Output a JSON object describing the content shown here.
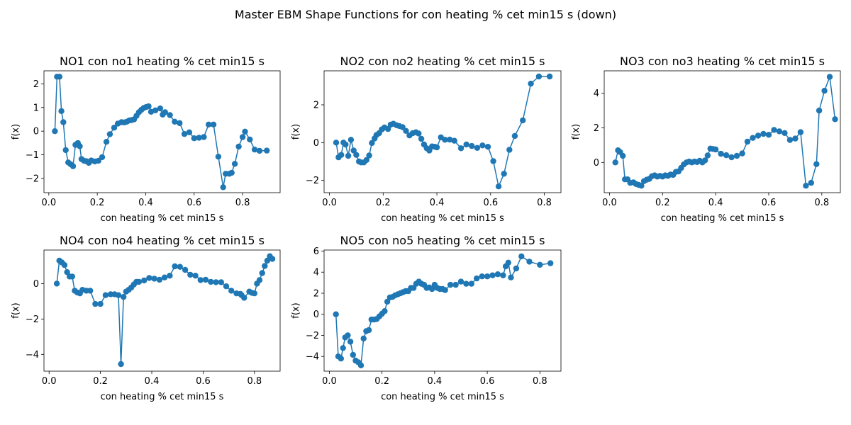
{
  "figure": {
    "suptitle": "Master EBM Shape Functions for con  heating % cet min15 s (down)"
  },
  "chart_data": [
    {
      "type": "line",
      "title": "NO1 con no1 heating % cet min15 s",
      "xlabel": "con  heating % cet min15 s",
      "ylabel": "f(x)",
      "xlim": [
        -0.02,
        0.955
      ],
      "ylim": [
        -2.6,
        2.55
      ],
      "xticks": [
        0.0,
        0.2,
        0.4,
        0.6,
        0.8
      ],
      "xtick_labels": [
        "0.0",
        "0.2",
        "0.4",
        "0.6",
        "0.8"
      ],
      "yticks": [
        -2,
        -1,
        0,
        1,
        2
      ],
      "ytick_labels": [
        "−2",
        "−1",
        "0",
        "1",
        "2"
      ],
      "color": "#1f77b4",
      "x": [
        0.025,
        0.034,
        0.044,
        0.052,
        0.06,
        0.07,
        0.08,
        0.09,
        0.1,
        0.11,
        0.12,
        0.128,
        0.135,
        0.145,
        0.155,
        0.165,
        0.175,
        0.19,
        0.205,
        0.22,
        0.238,
        0.252,
        0.27,
        0.285,
        0.3,
        0.312,
        0.322,
        0.332,
        0.342,
        0.352,
        0.362,
        0.372,
        0.382,
        0.392,
        0.402,
        0.412,
        0.422,
        0.44,
        0.46,
        0.47,
        0.48,
        0.5,
        0.52,
        0.54,
        0.56,
        0.58,
        0.6,
        0.62,
        0.64,
        0.66,
        0.68,
        0.7,
        0.72,
        0.73,
        0.745,
        0.755,
        0.768,
        0.784,
        0.8,
        0.81,
        0.83,
        0.85,
        0.87,
        0.9
      ],
      "y": [
        0.0,
        2.3,
        2.3,
        0.85,
        0.38,
        -0.8,
        -1.32,
        -1.4,
        -1.48,
        -0.58,
        -0.5,
        -0.64,
        -1.18,
        -1.25,
        -1.27,
        -1.34,
        -1.24,
        -1.28,
        -1.25,
        -1.1,
        -0.45,
        -0.13,
        0.15,
        0.32,
        0.38,
        0.37,
        0.4,
        0.45,
        0.47,
        0.5,
        0.65,
        0.8,
        0.9,
        0.98,
        1.02,
        1.05,
        0.82,
        0.88,
        0.96,
        0.7,
        0.8,
        0.68,
        0.4,
        0.34,
        -0.12,
        -0.05,
        -0.3,
        -0.28,
        -0.25,
        0.28,
        0.28,
        -1.08,
        -2.37,
        -1.8,
        -1.8,
        -1.76,
        -1.38,
        -0.65,
        -0.25,
        -0.02,
        -0.35,
        -0.78,
        -0.83,
        -0.82
      ]
    },
    {
      "type": "line",
      "title": "NO2 con no2 heating % cet min15 s",
      "xlabel": "con  heating % cet min15 s",
      "ylabel": "f(x)",
      "xlim": [
        -0.02,
        0.862
      ],
      "ylim": [
        -2.65,
        3.8
      ],
      "xticks": [
        0.0,
        0.2,
        0.4,
        0.6,
        0.8
      ],
      "xtick_labels": [
        "0.0",
        "0.2",
        "0.4",
        "0.6",
        "0.8"
      ],
      "yticks": [
        -2,
        0,
        2
      ],
      "ytick_labels": [
        "−2",
        "0",
        "2"
      ],
      "color": "#1f77b4",
      "x": [
        0.025,
        0.034,
        0.044,
        0.052,
        0.06,
        0.07,
        0.08,
        0.09,
        0.1,
        0.11,
        0.118,
        0.128,
        0.138,
        0.148,
        0.158,
        0.168,
        0.175,
        0.185,
        0.195,
        0.205,
        0.218,
        0.228,
        0.238,
        0.25,
        0.26,
        0.272,
        0.285,
        0.298,
        0.31,
        0.322,
        0.332,
        0.342,
        0.352,
        0.362,
        0.372,
        0.382,
        0.392,
        0.4,
        0.415,
        0.43,
        0.448,
        0.465,
        0.49,
        0.51,
        0.53,
        0.55,
        0.57,
        0.59,
        0.61,
        0.63,
        0.65,
        0.67,
        0.69,
        0.72,
        0.75,
        0.78,
        0.82
      ],
      "y": [
        0.0,
        -0.78,
        -0.65,
        0.0,
        -0.1,
        -0.7,
        0.15,
        -0.42,
        -0.65,
        -1.0,
        -1.05,
        -1.05,
        -0.92,
        -0.68,
        -0.02,
        0.22,
        0.4,
        0.5,
        0.7,
        0.8,
        0.72,
        0.95,
        1.0,
        0.92,
        0.88,
        0.82,
        0.62,
        0.38,
        0.5,
        0.55,
        0.48,
        0.2,
        -0.1,
        -0.3,
        -0.42,
        -0.2,
        -0.22,
        -0.25,
        0.28,
        0.15,
        0.16,
        0.1,
        -0.3,
        -0.1,
        -0.18,
        -0.28,
        -0.15,
        -0.22,
        -0.98,
        -2.32,
        -1.65,
        -0.38,
        0.35,
        1.18,
        3.12,
        3.5,
        3.5
      ]
    },
    {
      "type": "line",
      "title": "NO3 con no3 heating % cet min15 s",
      "xlabel": "con  heating % cet min15 s",
      "ylabel": "f(x)",
      "xlim": [
        -0.02,
        0.87
      ],
      "ylim": [
        -1.75,
        5.3
      ],
      "xticks": [
        0.0,
        0.2,
        0.4,
        0.6,
        0.8
      ],
      "xtick_labels": [
        "0.0",
        "0.2",
        "0.4",
        "0.6",
        "0.8"
      ],
      "yticks": [
        0,
        2,
        4
      ],
      "ytick_labels": [
        "0",
        "2",
        "4"
      ],
      "color": "#1f77b4",
      "x": [
        0.022,
        0.032,
        0.04,
        0.05,
        0.058,
        0.068,
        0.078,
        0.09,
        0.1,
        0.11,
        0.12,
        0.13,
        0.14,
        0.15,
        0.16,
        0.17,
        0.18,
        0.19,
        0.2,
        0.21,
        0.22,
        0.23,
        0.24,
        0.25,
        0.26,
        0.27,
        0.28,
        0.29,
        0.3,
        0.31,
        0.32,
        0.33,
        0.34,
        0.35,
        0.36,
        0.37,
        0.38,
        0.39,
        0.4,
        0.42,
        0.44,
        0.46,
        0.48,
        0.5,
        0.52,
        0.54,
        0.56,
        0.58,
        0.6,
        0.62,
        0.64,
        0.66,
        0.68,
        0.7,
        0.72,
        0.74,
        0.76,
        0.78,
        0.79,
        0.81,
        0.83,
        0.85
      ],
      "y": [
        0.0,
        0.7,
        0.6,
        0.38,
        -0.98,
        -0.98,
        -1.18,
        -1.15,
        -1.25,
        -1.3,
        -1.35,
        -1.08,
        -1.0,
        -0.95,
        -0.8,
        -0.75,
        -0.82,
        -0.78,
        -0.82,
        -0.75,
        -0.78,
        -0.7,
        -0.72,
        -0.55,
        -0.52,
        -0.32,
        -0.12,
        0.0,
        0.05,
        0.0,
        0.05,
        0.02,
        0.1,
        0.0,
        0.12,
        0.4,
        0.8,
        0.78,
        0.75,
        0.5,
        0.42,
        0.3,
        0.38,
        0.52,
        1.2,
        1.42,
        1.55,
        1.65,
        1.6,
        1.88,
        1.8,
        1.7,
        1.3,
        1.38,
        1.75,
        -1.35,
        -1.18,
        -0.1,
        3.0,
        4.15,
        4.95,
        2.5
      ]
    },
    {
      "type": "line",
      "title": "NO4 con no4 heating % cet min15 s",
      "xlabel": "con  heating % cet min15 s",
      "ylabel": "f(x)",
      "xlim": [
        -0.02,
        0.9
      ],
      "ylim": [
        -4.95,
        1.9
      ],
      "xticks": [
        0.0,
        0.2,
        0.4,
        0.6,
        0.8
      ],
      "xtick_labels": [
        "0.0",
        "0.2",
        "0.4",
        "0.6",
        "0.8"
      ],
      "yticks": [
        -4,
        -2,
        0
      ],
      "ytick_labels": [
        "−4",
        "−2",
        "0"
      ],
      "color": "#1f77b4",
      "x": [
        0.03,
        0.04,
        0.05,
        0.06,
        0.07,
        0.08,
        0.09,
        0.1,
        0.11,
        0.12,
        0.13,
        0.145,
        0.16,
        0.18,
        0.2,
        0.22,
        0.24,
        0.255,
        0.27,
        0.28,
        0.29,
        0.3,
        0.31,
        0.32,
        0.33,
        0.34,
        0.35,
        0.37,
        0.39,
        0.41,
        0.43,
        0.45,
        0.47,
        0.49,
        0.51,
        0.53,
        0.55,
        0.57,
        0.59,
        0.61,
        0.63,
        0.65,
        0.67,
        0.69,
        0.71,
        0.73,
        0.745,
        0.75,
        0.76,
        0.78,
        0.79,
        0.8,
        0.81,
        0.82,
        0.83,
        0.84,
        0.85,
        0.86,
        0.87
      ],
      "y": [
        0.0,
        1.3,
        1.2,
        1.05,
        0.65,
        0.4,
        0.4,
        -0.4,
        -0.5,
        -0.55,
        -0.35,
        -0.4,
        -0.4,
        -1.15,
        -1.15,
        -0.65,
        -0.6,
        -0.6,
        -0.65,
        -4.55,
        -0.75,
        -0.45,
        -0.35,
        -0.22,
        -0.05,
        0.1,
        0.1,
        0.18,
        0.32,
        0.28,
        0.22,
        0.35,
        0.45,
        0.98,
        0.95,
        0.78,
        0.5,
        0.45,
        0.2,
        0.22,
        0.1,
        0.08,
        0.08,
        -0.15,
        -0.4,
        -0.55,
        -0.58,
        -0.65,
        -0.8,
        -0.45,
        -0.52,
        -0.55,
        0.0,
        0.2,
        0.6,
        1.0,
        1.3,
        1.55,
        1.4
      ]
    },
    {
      "type": "line",
      "title": "NO5 con no5 heating % cet min15 s",
      "xlabel": "con  heating % cet min15 s",
      "ylabel": "f(x)",
      "xlim": [
        -0.02,
        0.88
      ],
      "ylim": [
        -5.4,
        6.1
      ],
      "xticks": [
        0.0,
        0.2,
        0.4,
        0.6,
        0.8
      ],
      "xtick_labels": [
        "0.0",
        "0.2",
        "0.4",
        "0.6",
        "0.8"
      ],
      "yticks": [
        -4,
        -2,
        0,
        2,
        4,
        6
      ],
      "ytick_labels": [
        "−4",
        "−2",
        "0",
        "2",
        "4",
        "6"
      ],
      "color": "#1f77b4",
      "x": [
        0.025,
        0.034,
        0.044,
        0.052,
        0.06,
        0.07,
        0.08,
        0.09,
        0.1,
        0.11,
        0.12,
        0.13,
        0.14,
        0.15,
        0.16,
        0.17,
        0.18,
        0.19,
        0.2,
        0.21,
        0.22,
        0.23,
        0.24,
        0.25,
        0.26,
        0.27,
        0.28,
        0.29,
        0.3,
        0.31,
        0.32,
        0.33,
        0.34,
        0.35,
        0.36,
        0.37,
        0.38,
        0.39,
        0.4,
        0.41,
        0.42,
        0.43,
        0.44,
        0.46,
        0.48,
        0.5,
        0.52,
        0.54,
        0.56,
        0.58,
        0.6,
        0.62,
        0.64,
        0.66,
        0.67,
        0.68,
        0.69,
        0.71,
        0.73,
        0.76,
        0.8,
        0.84
      ],
      "y": [
        0.0,
        -4.0,
        -4.2,
        -3.2,
        -2.2,
        -2.0,
        -2.6,
        -3.85,
        -4.4,
        -4.55,
        -4.85,
        -2.3,
        -1.6,
        -1.5,
        -0.5,
        -0.5,
        -0.45,
        -0.2,
        0.05,
        0.3,
        1.2,
        1.6,
        1.65,
        1.8,
        1.9,
        2.0,
        2.1,
        2.2,
        2.2,
        2.5,
        2.5,
        2.9,
        3.1,
        2.9,
        2.8,
        2.5,
        2.55,
        2.4,
        2.8,
        2.5,
        2.4,
        2.4,
        2.3,
        2.8,
        2.8,
        3.1,
        2.9,
        2.9,
        3.4,
        3.6,
        3.6,
        3.7,
        3.8,
        3.7,
        4.55,
        4.9,
        3.5,
        4.35,
        5.5,
        5.0,
        4.7,
        4.85
      ]
    }
  ]
}
